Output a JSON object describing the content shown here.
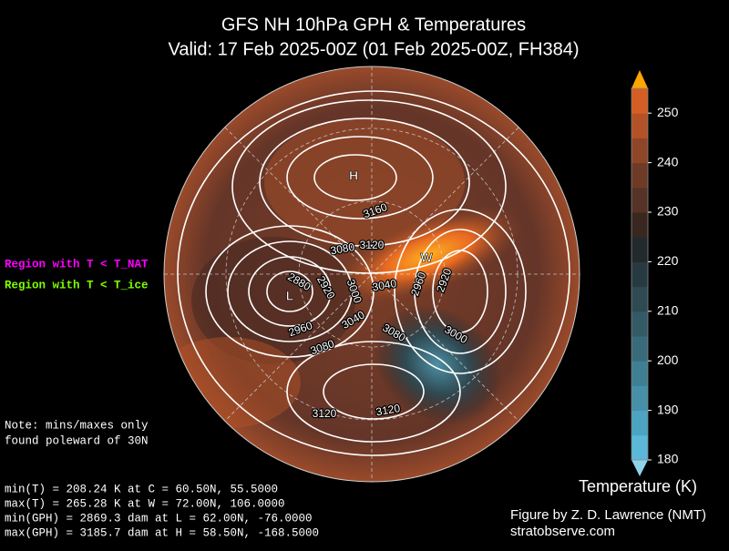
{
  "title": [
    "GFS NH 10hPa GPH & Temperatures",
    "Valid: 17 Feb 2025-00Z  (01 Feb 2025-00Z, FH384)"
  ],
  "legend": [
    {
      "label": "Region with T < T_NAT",
      "color": "#ff00ff"
    },
    {
      "label": "Region with T < T_ice",
      "color": "#7fff00"
    }
  ],
  "note": [
    "Note: mins/maxes only",
    "found poleward of 30N"
  ],
  "stats": [
    "min(T) = 208.24 K at C = 60.50N,   55.5000",
    "max(T) = 265.28 K at W = 72.00N,  106.0000",
    "min(GPH) = 2869.3 dam at L = 62.00N,  -76.0000",
    "max(GPH) = 3185.7 dam at H = 58.50N, -168.5000"
  ],
  "map": {
    "centers": [
      "H",
      "L",
      "W"
    ],
    "contour_labels": [
      "3160",
      "3120",
      "3080",
      "2920",
      "2880",
      "3000",
      "3040",
      "2960",
      "2920",
      "3040",
      "2960",
      "3080",
      "3080",
      "3000",
      "3120",
      "3120"
    ]
  },
  "colorbar": {
    "label": "Temperature (K)",
    "range": [
      180,
      255
    ],
    "ticks": [
      180,
      190,
      200,
      210,
      220,
      230,
      240,
      250
    ],
    "colors": [
      "#5bb8d8",
      "#4ca3c2",
      "#4690a8",
      "#3f7f93",
      "#3a6b7b",
      "#345a66",
      "#2f4a53",
      "#283a41",
      "#222a2e",
      "#3a2720",
      "#553326",
      "#6e3b27",
      "#8f4628",
      "#b25226",
      "#d45e24"
    ],
    "under_color": "#8fd3ea",
    "over_color": "#ffa500"
  },
  "credit": [
    "Figure by Z. D. Lawrence (NMT)",
    "stratobserve.com"
  ]
}
